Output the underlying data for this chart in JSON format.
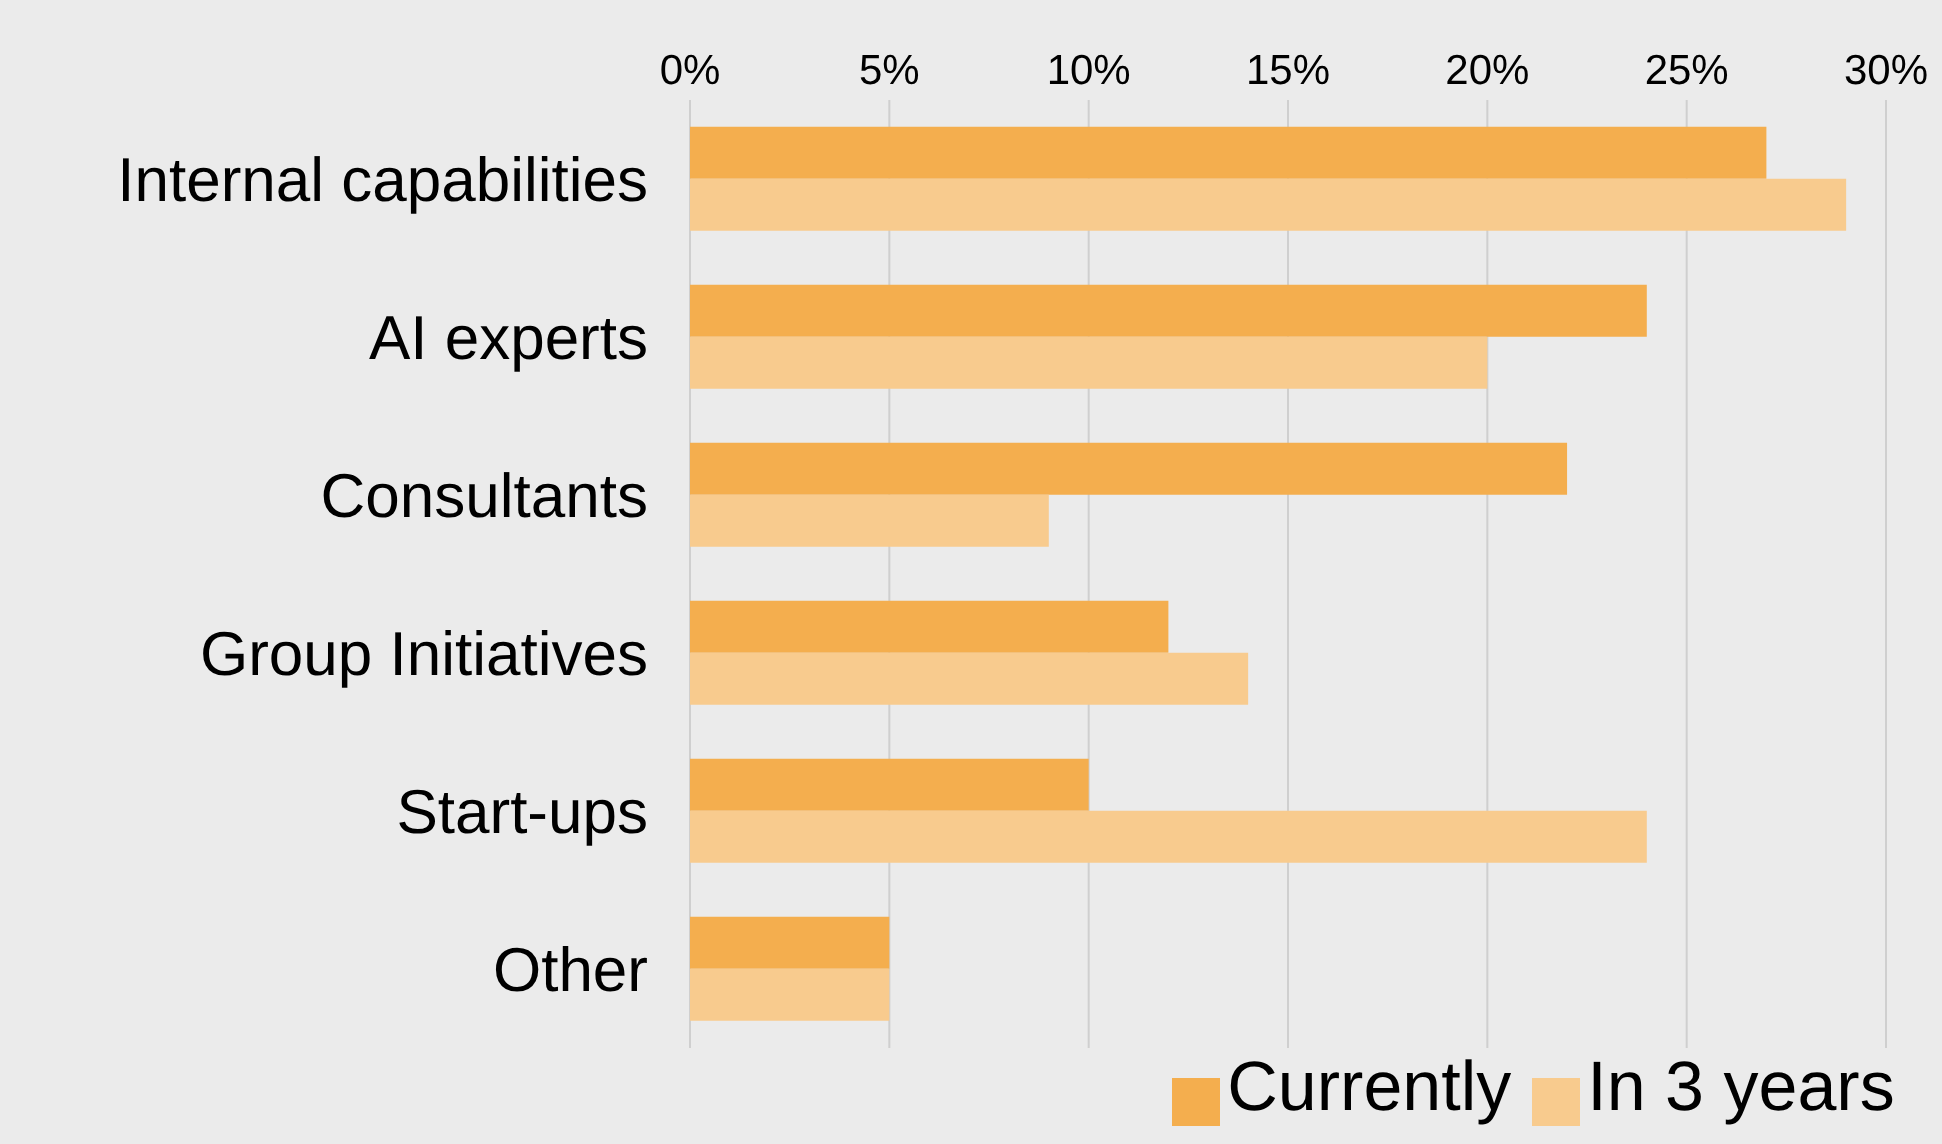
{
  "chart_data": {
    "type": "bar",
    "orientation": "horizontal",
    "categories": [
      "Internal capabilities",
      "AI experts",
      "Consultants",
      "Group Initiatives",
      "Start-ups",
      "Other"
    ],
    "series": [
      {
        "name": "Currently",
        "color": "#f4ae4e",
        "values": [
          27,
          24,
          22,
          12,
          10,
          5
        ]
      },
      {
        "name": "In 3 years",
        "color": "#f8cb8e",
        "values": [
          29,
          20,
          9,
          14,
          24,
          5
        ]
      }
    ],
    "xlim": [
      0,
      30
    ],
    "xticks": [
      {
        "value": 0,
        "label": "0%"
      },
      {
        "value": 5,
        "label": "5%"
      },
      {
        "value": 10,
        "label": "10%"
      },
      {
        "value": 15,
        "label": "15%"
      },
      {
        "value": 20,
        "label": "20%"
      },
      {
        "value": 25,
        "label": "25%"
      },
      {
        "value": 30,
        "label": "30%"
      }
    ],
    "grid": "x",
    "legend": "bottom"
  }
}
